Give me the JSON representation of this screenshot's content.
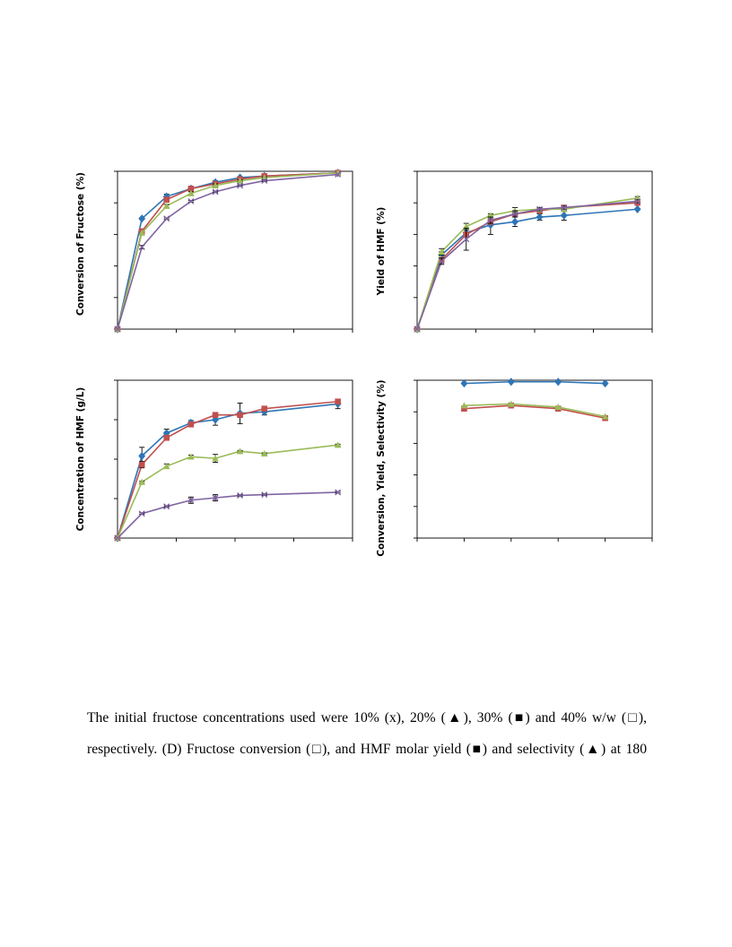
{
  "chart_data": [
    {
      "type": "line",
      "panel": "A",
      "ylabel": "Conversion of Fructose (%)",
      "xlim": [
        0,
        8
      ],
      "ylim": [
        0,
        100
      ],
      "x_ticks": [
        0,
        2,
        4,
        6,
        8
      ],
      "y_ticks": [
        0,
        20,
        40,
        60,
        80,
        100
      ],
      "grid": false,
      "legend": "none",
      "series": [
        {
          "marker": "diamond",
          "color": "#2e75b6",
          "x": [
            0,
            0.83,
            1.67,
            2.5,
            3.33,
            4.17,
            5.0,
            7.5
          ],
          "y": [
            0,
            70,
            84,
            89,
            93,
            96,
            97,
            99
          ],
          "err": [
            0,
            0,
            1.5,
            1,
            1,
            0.5,
            0.5,
            0
          ]
        },
        {
          "marker": "square",
          "color": "#c0504d",
          "x": [
            0,
            0.83,
            1.67,
            2.5,
            3.33,
            4.17,
            5.0,
            7.5
          ],
          "y": [
            0,
            62,
            82,
            89,
            92,
            95,
            97,
            99
          ],
          "err": [
            0,
            0,
            1,
            1,
            1,
            0.5,
            0.5,
            0
          ]
        },
        {
          "marker": "triangle",
          "color": "#9bbb59",
          "x": [
            0,
            0.83,
            1.67,
            2.5,
            3.33,
            4.17,
            5.0,
            7.5
          ],
          "y": [
            0,
            61,
            78,
            86,
            91,
            94,
            96,
            99
          ],
          "err": [
            0,
            0,
            1,
            1,
            1,
            0.5,
            0.5,
            0
          ]
        },
        {
          "marker": "x",
          "color": "#8064a2",
          "x": [
            0,
            0.83,
            1.67,
            2.5,
            3.33,
            4.17,
            5.0,
            7.5
          ],
          "y": [
            0,
            52,
            70,
            81,
            87,
            91,
            94,
            98
          ],
          "err": [
            0,
            1,
            0.5,
            0.5,
            0.5,
            0.5,
            0.5,
            0
          ]
        }
      ]
    },
    {
      "type": "line",
      "panel": "B",
      "ylabel": "Yield of HMF (%)",
      "xlim": [
        0,
        8
      ],
      "ylim": [
        0,
        100
      ],
      "x_ticks": [
        0,
        2,
        4,
        6,
        8
      ],
      "y_ticks": [
        0,
        20,
        40,
        60,
        80,
        100
      ],
      "grid": false,
      "legend": "none",
      "series": [
        {
          "marker": "diamond",
          "color": "#2e75b6",
          "x": [
            0,
            0.83,
            1.67,
            2.5,
            3.33,
            4.17,
            5.0,
            7.5
          ],
          "y": [
            0,
            47,
            61,
            66,
            68,
            71,
            72,
            76
          ],
          "err": [
            0,
            2,
            2,
            6,
            3,
            2,
            3,
            0
          ]
        },
        {
          "marker": "square",
          "color": "#c0504d",
          "x": [
            0,
            0.83,
            1.67,
            2.5,
            3.33,
            4.17,
            5.0,
            7.5
          ],
          "y": [
            0,
            44,
            60,
            68,
            73,
            75,
            77,
            80
          ],
          "err": [
            0,
            1,
            1,
            1,
            1,
            1,
            1,
            1
          ]
        },
        {
          "marker": "triangle",
          "color": "#9bbb59",
          "x": [
            0,
            0.83,
            1.67,
            2.5,
            3.33,
            4.17,
            5.0,
            7.5
          ],
          "y": [
            0,
            49,
            65,
            72,
            75,
            76,
            76,
            83
          ],
          "err": [
            0,
            2,
            2,
            1,
            2,
            1,
            1,
            1
          ]
        },
        {
          "marker": "x",
          "color": "#8064a2",
          "x": [
            0,
            0.83,
            1.67,
            2.5,
            3.33,
            4.17,
            5.0,
            7.5
          ],
          "y": [
            0,
            43,
            57,
            69,
            73,
            76,
            77,
            81
          ],
          "err": [
            0,
            2,
            7,
            2,
            2,
            1,
            1,
            1
          ]
        }
      ]
    },
    {
      "type": "line",
      "panel": "C",
      "ylabel": "Concentration of HMF (g/L)",
      "xlim": [
        0,
        8
      ],
      "ylim": [
        0,
        200
      ],
      "x_ticks": [
        0,
        2,
        4,
        6,
        8
      ],
      "y_ticks": [
        0,
        50,
        100,
        150,
        200
      ],
      "grid": false,
      "legend": "none",
      "series": [
        {
          "marker": "diamond",
          "color": "#2e75b6",
          "x": [
            0,
            0.83,
            1.67,
            2.5,
            3.33,
            4.17,
            5.0,
            7.5
          ],
          "y": [
            0,
            104,
            133,
            146,
            150,
            158,
            160,
            170
          ],
          "err": [
            0,
            11,
            5,
            3,
            7,
            13,
            4,
            6
          ]
        },
        {
          "marker": "square",
          "color": "#c0504d",
          "x": [
            0,
            0.83,
            1.67,
            2.5,
            3.33,
            4.17,
            5.0,
            7.5
          ],
          "y": [
            0,
            93,
            127,
            144,
            156,
            156,
            164,
            173
          ],
          "err": [
            0,
            4,
            1,
            2,
            1,
            1,
            3,
            1
          ]
        },
        {
          "marker": "triangle",
          "color": "#9bbb59",
          "x": [
            0,
            0.83,
            1.67,
            2.5,
            3.33,
            4.17,
            5.0,
            7.5
          ],
          "y": [
            0,
            71,
            91,
            103,
            101,
            110,
            107,
            118
          ],
          "err": [
            0,
            1,
            3,
            2,
            5,
            1,
            1,
            1
          ]
        },
        {
          "marker": "x",
          "color": "#8064a2",
          "x": [
            0,
            0.83,
            1.67,
            2.5,
            3.33,
            4.17,
            5.0,
            7.5
          ],
          "y": [
            0,
            31,
            40,
            48,
            51,
            54,
            55,
            58
          ],
          "err": [
            0,
            1,
            1,
            4,
            4,
            1,
            1,
            1
          ]
        }
      ]
    },
    {
      "type": "line",
      "panel": "D",
      "ylabel": "Conversion, Yield, Selectivity (%)",
      "xlim": [
        0,
        50
      ],
      "ylim": [
        0,
        100
      ],
      "x_ticks": [
        0,
        10,
        20,
        30,
        40,
        50
      ],
      "y_ticks": [
        0,
        20,
        40,
        60,
        80,
        100
      ],
      "grid": false,
      "legend": "none",
      "series": [
        {
          "marker": "diamond",
          "color": "#2e75b6",
          "x": [
            10,
            20,
            30,
            40
          ],
          "y": [
            98,
            99,
            99,
            98
          ],
          "err": [
            0,
            0,
            0,
            0
          ]
        },
        {
          "marker": "square",
          "color": "#c0504d",
          "x": [
            10,
            20,
            30,
            40
          ],
          "y": [
            82,
            84,
            82,
            76
          ],
          "err": [
            0,
            0,
            0,
            0
          ]
        },
        {
          "marker": "triangle",
          "color": "#9bbb59",
          "x": [
            10,
            20,
            30,
            40
          ],
          "y": [
            84,
            85,
            83,
            77
          ],
          "err": [
            0,
            0,
            0,
            0
          ]
        }
      ]
    }
  ],
  "caption": {
    "line1": "The initial fructose concentrations used were 10% (x), 20% (▲), 30% (■) and 40% w/w (□),",
    "line2": "respectively. (D) Fructose conversion (□), and HMF molar yield (■) and selectivity (▲) at 180"
  }
}
